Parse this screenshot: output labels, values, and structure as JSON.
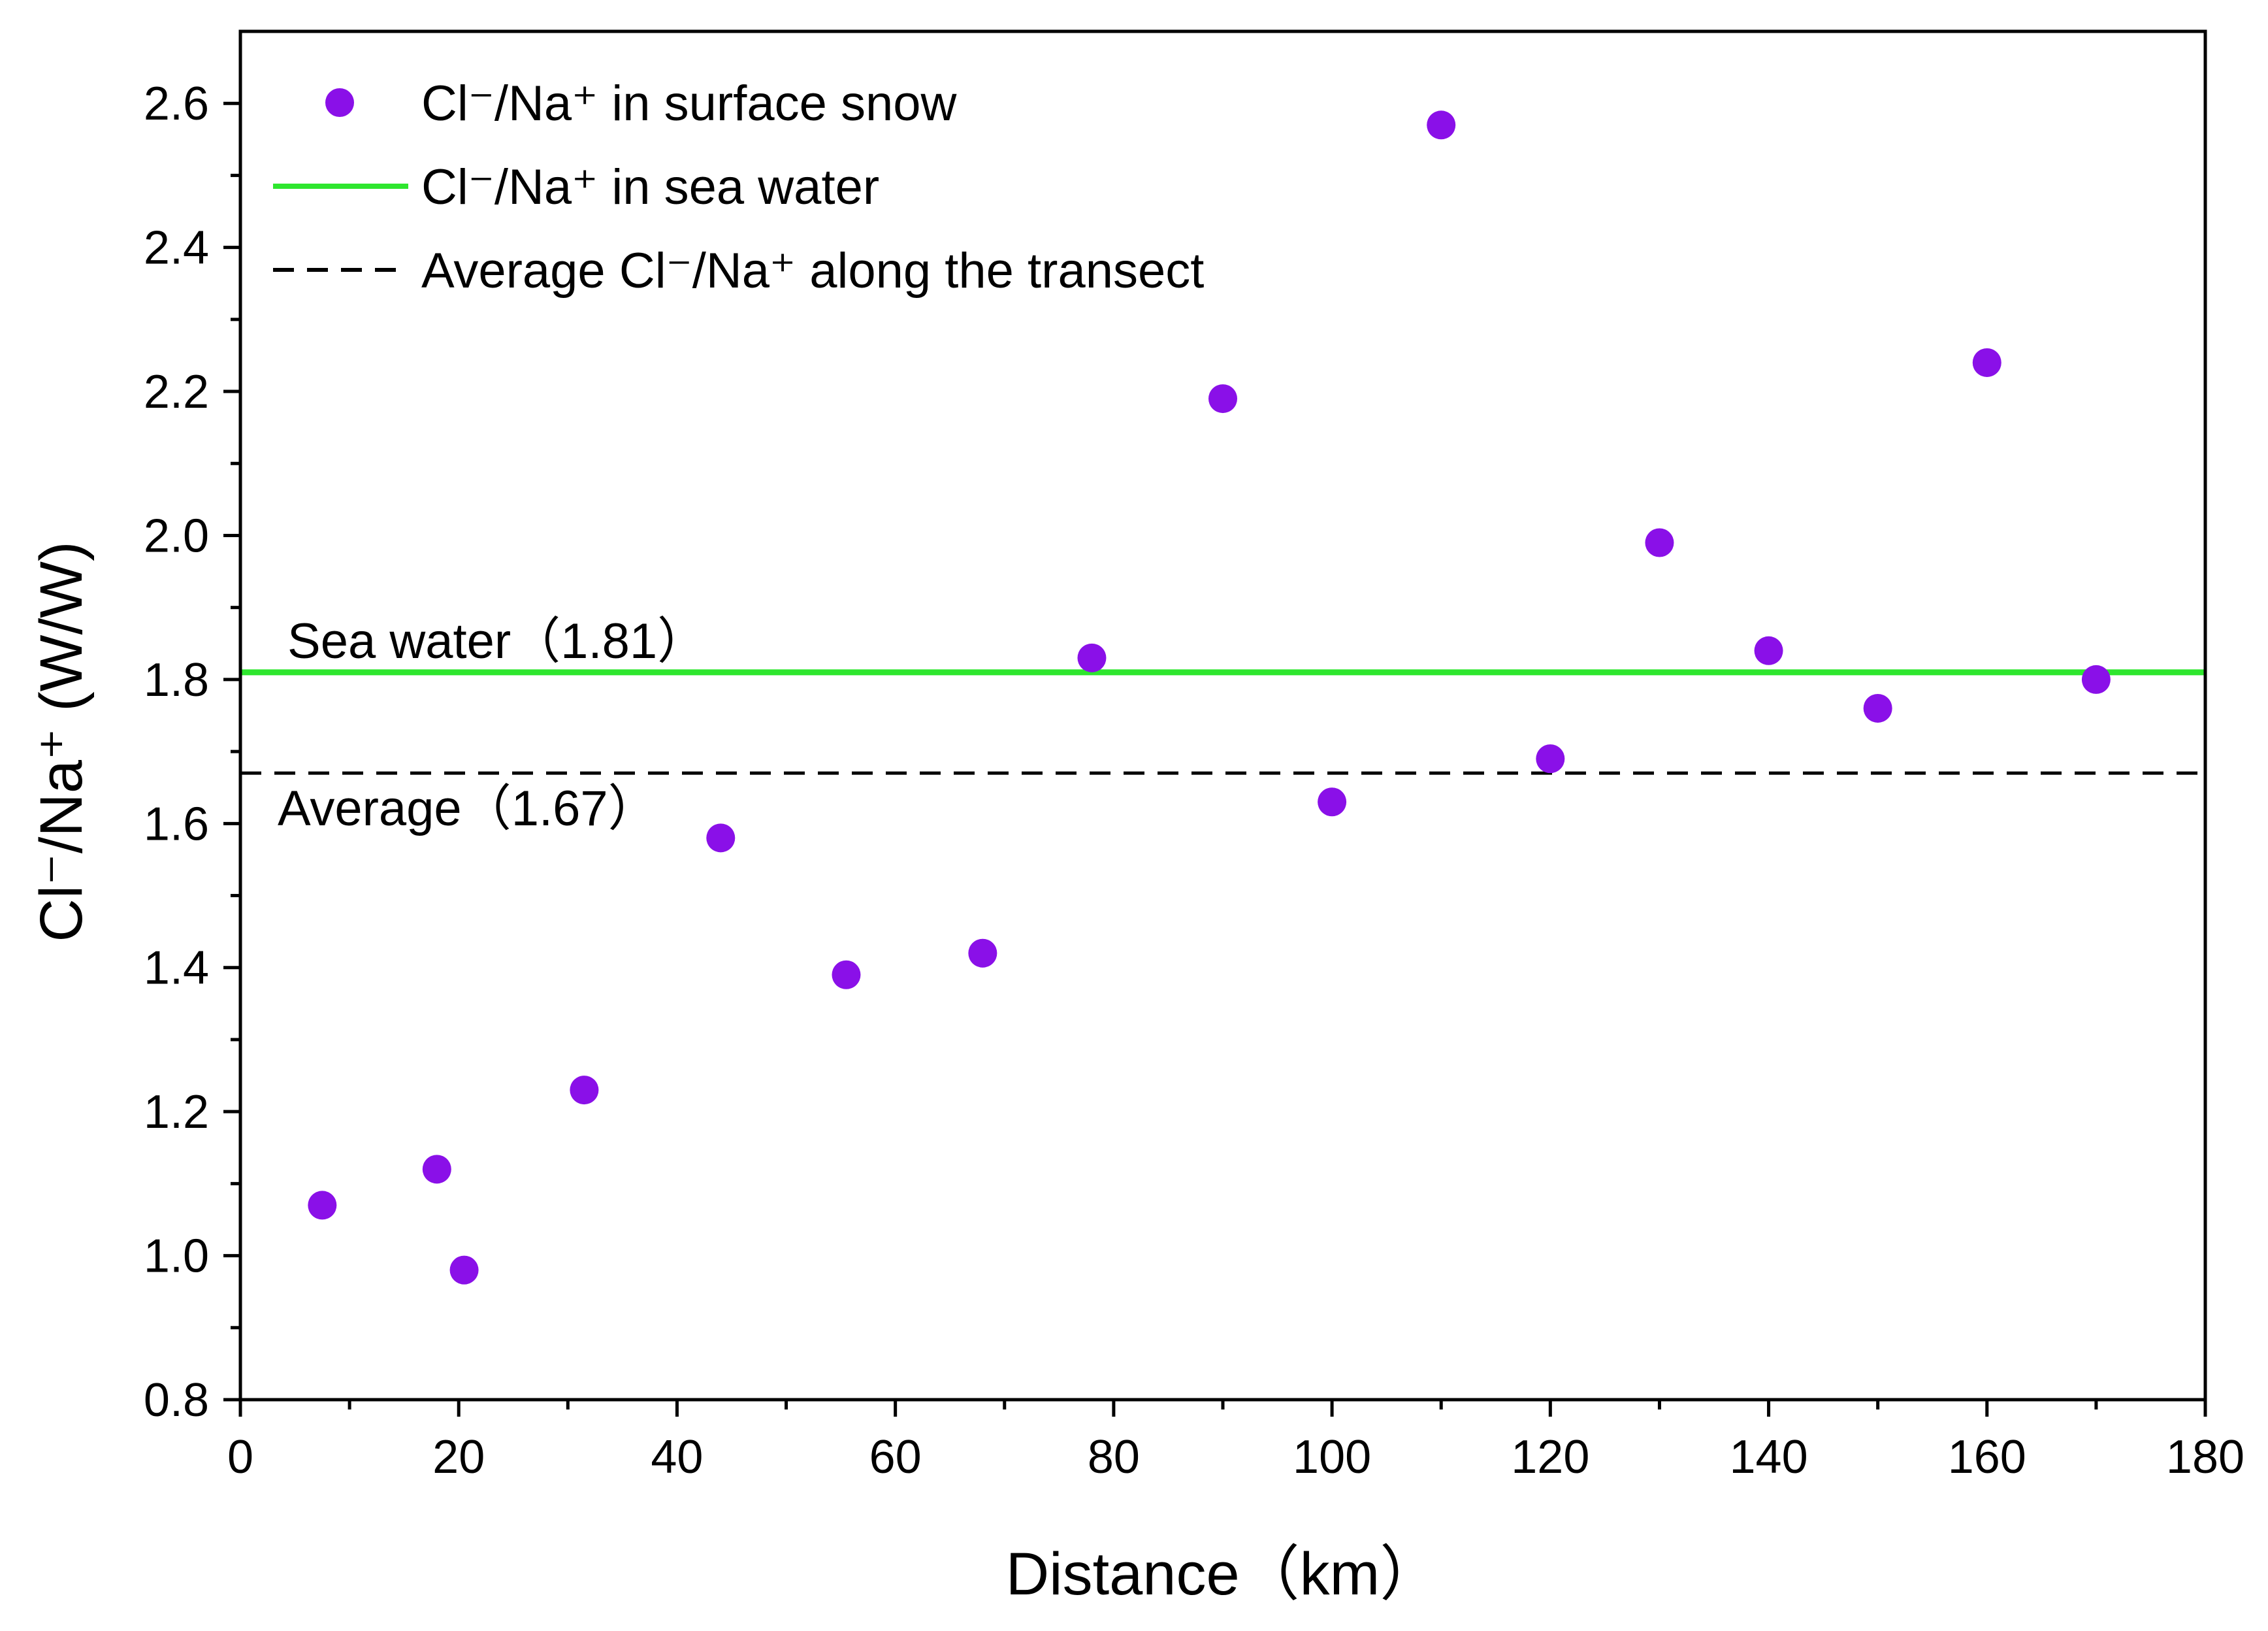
{
  "chart_data": {
    "type": "scatter",
    "xlabel": "Distance（km）",
    "ylabel": "Cl⁻/Na⁺ (W/W)",
    "xlim": [
      0,
      180
    ],
    "ylim": [
      0.8,
      2.7
    ],
    "x_ticks": [
      0,
      20,
      40,
      60,
      80,
      100,
      120,
      140,
      160,
      180
    ],
    "y_ticks": [
      0.8,
      1.0,
      1.2,
      1.4,
      1.6,
      1.8,
      2.0,
      2.2,
      2.4,
      2.6
    ],
    "x_tick_labels": [
      "0",
      "20",
      "40",
      "60",
      "80",
      "100",
      "120",
      "140",
      "160",
      "180"
    ],
    "y_tick_labels": [
      "0.8",
      "1.0",
      "1.2",
      "1.4",
      "1.6",
      "1.8",
      "2.0",
      "2.2",
      "2.4",
      "2.6"
    ],
    "grid": false,
    "legend_position": "top-left",
    "series": [
      {
        "name": "Cl⁻/Na⁺ in surface snow",
        "type": "scatter",
        "color": "#8a10e8",
        "x": [
          7.5,
          18,
          20.5,
          31.5,
          44,
          55.5,
          68,
          78,
          90,
          100,
          110,
          120,
          130,
          140,
          150,
          160,
          170
        ],
        "y": [
          1.07,
          1.12,
          0.98,
          1.23,
          1.58,
          1.39,
          1.42,
          1.83,
          2.19,
          1.63,
          2.57,
          1.69,
          1.99,
          1.84,
          1.76,
          2.24,
          1.8
        ]
      },
      {
        "name": "Cl⁻/Na⁺ in sea water",
        "type": "hline",
        "color": "#2ee62e",
        "value": 1.81,
        "label": "Sea water（1.81）"
      },
      {
        "name": "Average Cl⁻/Na⁺ along the transect",
        "type": "hline",
        "color": "#000000",
        "dashed": true,
        "value": 1.67,
        "label": "Average（1.67）"
      }
    ]
  }
}
